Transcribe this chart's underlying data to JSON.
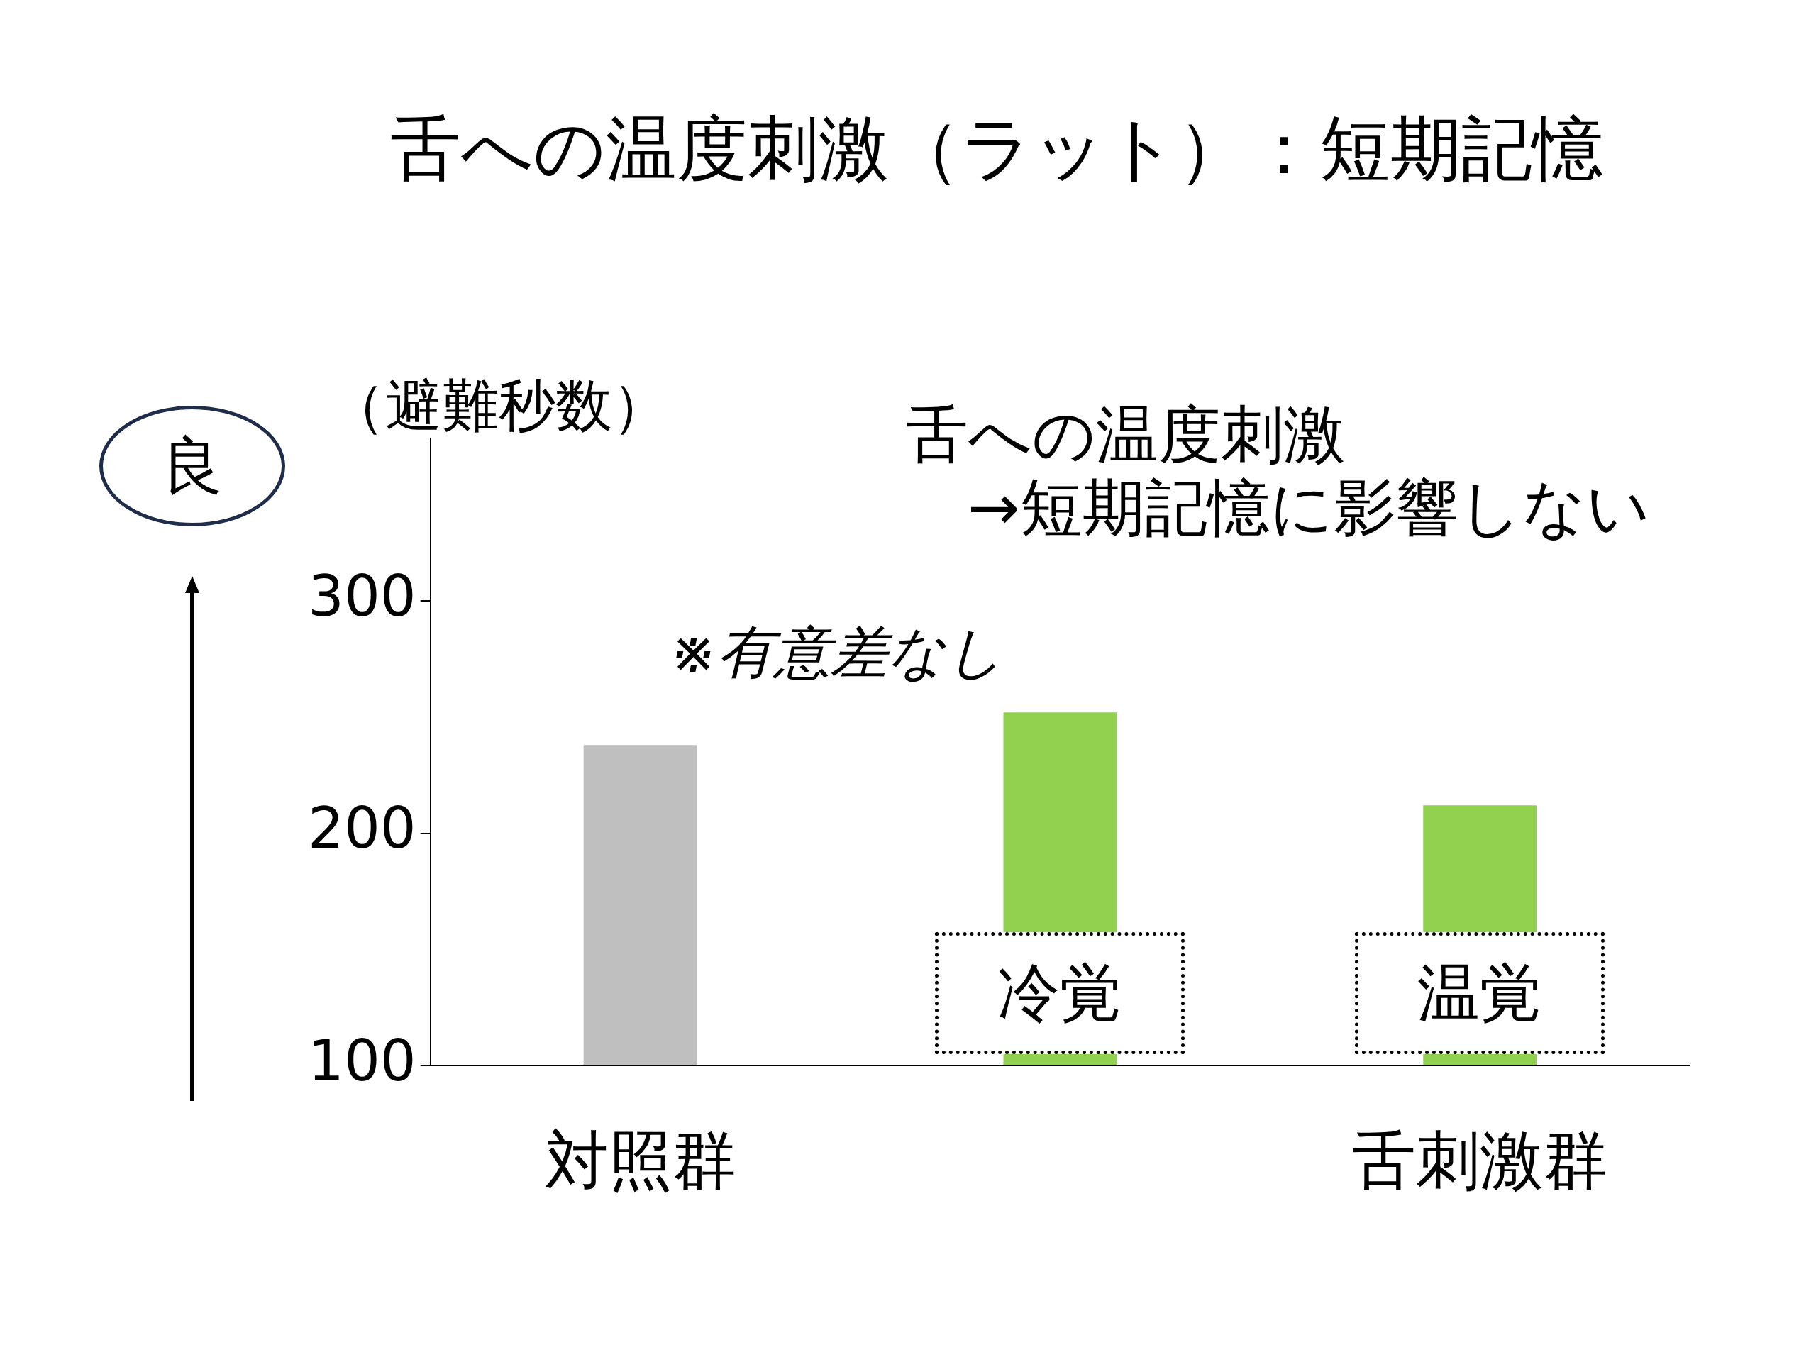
{
  "chart_data": {
    "type": "bar",
    "title": "舌への温度刺激（ラット）：短期記憶",
    "ylabel": "（避難秒数）",
    "categories": [
      "対照群",
      null,
      "舌刺激群"
    ],
    "values": [
      238,
      252,
      212
    ],
    "colors": [
      "#bfbfbf",
      "#92d050",
      "#92d050"
    ],
    "ylim": [
      100,
      370
    ],
    "yticks": [
      100,
      200,
      300
    ],
    "grid": false,
    "annotations": [
      "舌への温度刺激\n→短期記憶に影響しない",
      "※有意差なし",
      "冷覚",
      "温覚",
      "良"
    ]
  }
}
